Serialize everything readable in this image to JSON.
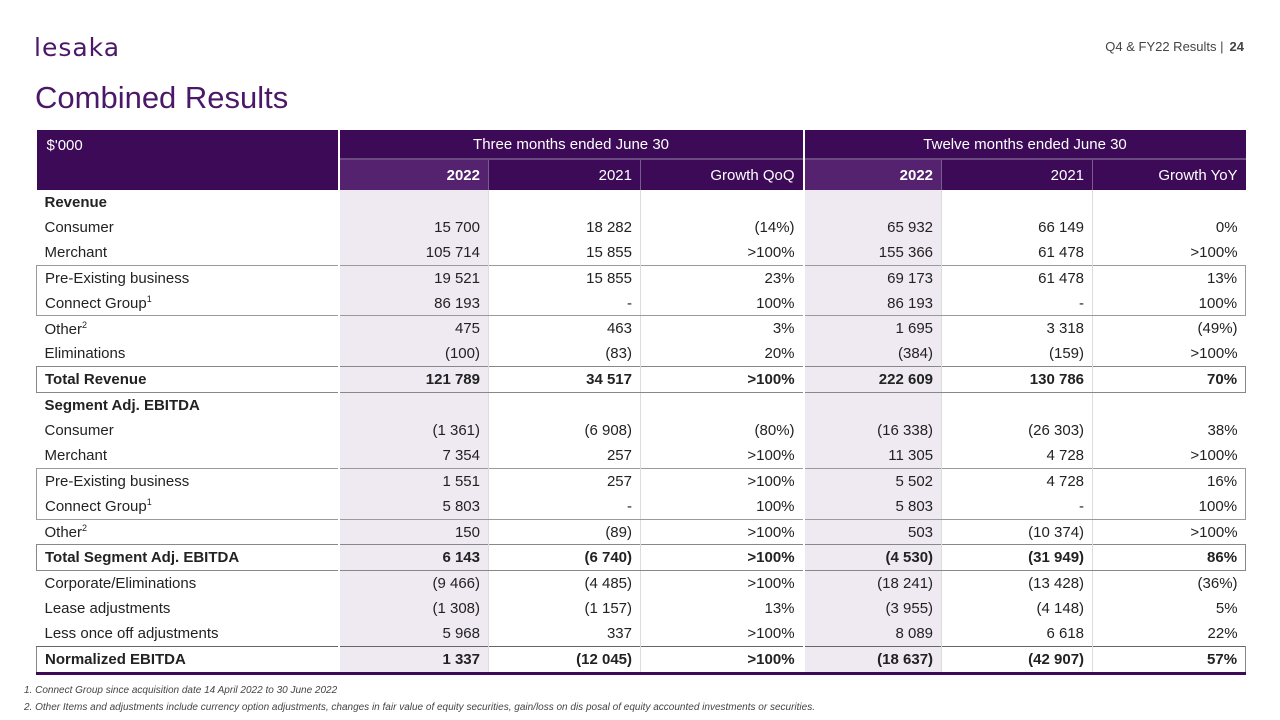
{
  "header": {
    "logo_text": "lesaka",
    "section": "Q4 & FY22 Results |",
    "page_number": "24"
  },
  "title": "Combined Results",
  "table": {
    "unit_label": "$'000",
    "group_three": "Three months ended June 30",
    "group_twelve": "Twelve months ended June 30",
    "columns": [
      "2022",
      "2021",
      "Growth QoQ",
      "2022",
      "2021",
      "Growth YoY"
    ],
    "rows": [
      {
        "label": "Revenue",
        "values": [
          "",
          "",
          "",
          "",
          "",
          ""
        ]
      },
      {
        "label": "Consumer",
        "values": [
          "15 700",
          "18 282",
          "(14%)",
          "65 932",
          "66 149",
          "0%"
        ]
      },
      {
        "label": "Merchant",
        "values": [
          "105 714",
          "15 855",
          ">100%",
          "155 366",
          "61 478",
          ">100%"
        ]
      },
      {
        "label": "Pre-Existing business",
        "values": [
          "19 521",
          "15 855",
          "23%",
          "69 173",
          "61 478",
          "13%"
        ]
      },
      {
        "label": "Connect Group",
        "sup": "1",
        "values": [
          "86 193",
          "-",
          "100%",
          "86 193",
          "-",
          "100%"
        ]
      },
      {
        "label": "Other",
        "sup": "2",
        "values": [
          "475",
          "463",
          "3%",
          "1 695",
          "3 318",
          "(49%)"
        ]
      },
      {
        "label": "Eliminations",
        "values": [
          "(100)",
          "(83)",
          "20%",
          "(384)",
          "(159)",
          ">100%"
        ]
      },
      {
        "label": "Total Revenue",
        "values": [
          "121 789",
          "34 517",
          ">100%",
          "222 609",
          "130 786",
          "70%"
        ]
      },
      {
        "label": "Segment Adj. EBITDA",
        "values": [
          "",
          "",
          "",
          "",
          "",
          ""
        ]
      },
      {
        "label": "Consumer",
        "values": [
          "(1 361)",
          "(6 908)",
          "(80%)",
          "(16 338)",
          "(26 303)",
          "38%"
        ]
      },
      {
        "label": "Merchant",
        "values": [
          "7 354",
          "257",
          ">100%",
          "11 305",
          "4 728",
          ">100%"
        ]
      },
      {
        "label": "Pre-Existing business",
        "values": [
          "1 551",
          "257",
          ">100%",
          "5 502",
          "4 728",
          "16%"
        ]
      },
      {
        "label": "Connect Group",
        "sup": "1",
        "values": [
          "5 803",
          "-",
          "100%",
          "5 803",
          "-",
          "100%"
        ]
      },
      {
        "label": "Other",
        "sup": "2",
        "values": [
          "150",
          "(89)",
          ">100%",
          "503",
          "(10 374)",
          ">100%"
        ]
      },
      {
        "label": "Total Segment Adj. EBITDA",
        "values": [
          "6 143",
          "(6 740)",
          ">100%",
          "(4 530)",
          "(31 949)",
          "86%"
        ]
      },
      {
        "label": "Corporate/Eliminations",
        "values": [
          "(9 466)",
          "(4 485)",
          ">100%",
          "(18 241)",
          "(13 428)",
          "(36%)"
        ]
      },
      {
        "label": "Lease adjustments",
        "values": [
          "(1 308)",
          "(1 157)",
          "13%",
          "(3 955)",
          "(4 148)",
          "5%"
        ]
      },
      {
        "label": "Less once off adjustments",
        "values": [
          "5 968",
          "337",
          ">100%",
          "8 089",
          "6 618",
          "22%"
        ]
      },
      {
        "label": "Normalized EBITDA",
        "values": [
          "1 337",
          "(12 045)",
          ">100%",
          "(18 637)",
          "(42 907)",
          "57%"
        ]
      }
    ]
  },
  "footnotes": [
    "1. Connect Group since acquisition date 14 April 2022 to 30 June 2022",
    "2. Other Items and adjustments include currency option adjustments, changes in fair value of equity securities, gain/loss on dis posal of equity accounted investments or securities."
  ]
}
